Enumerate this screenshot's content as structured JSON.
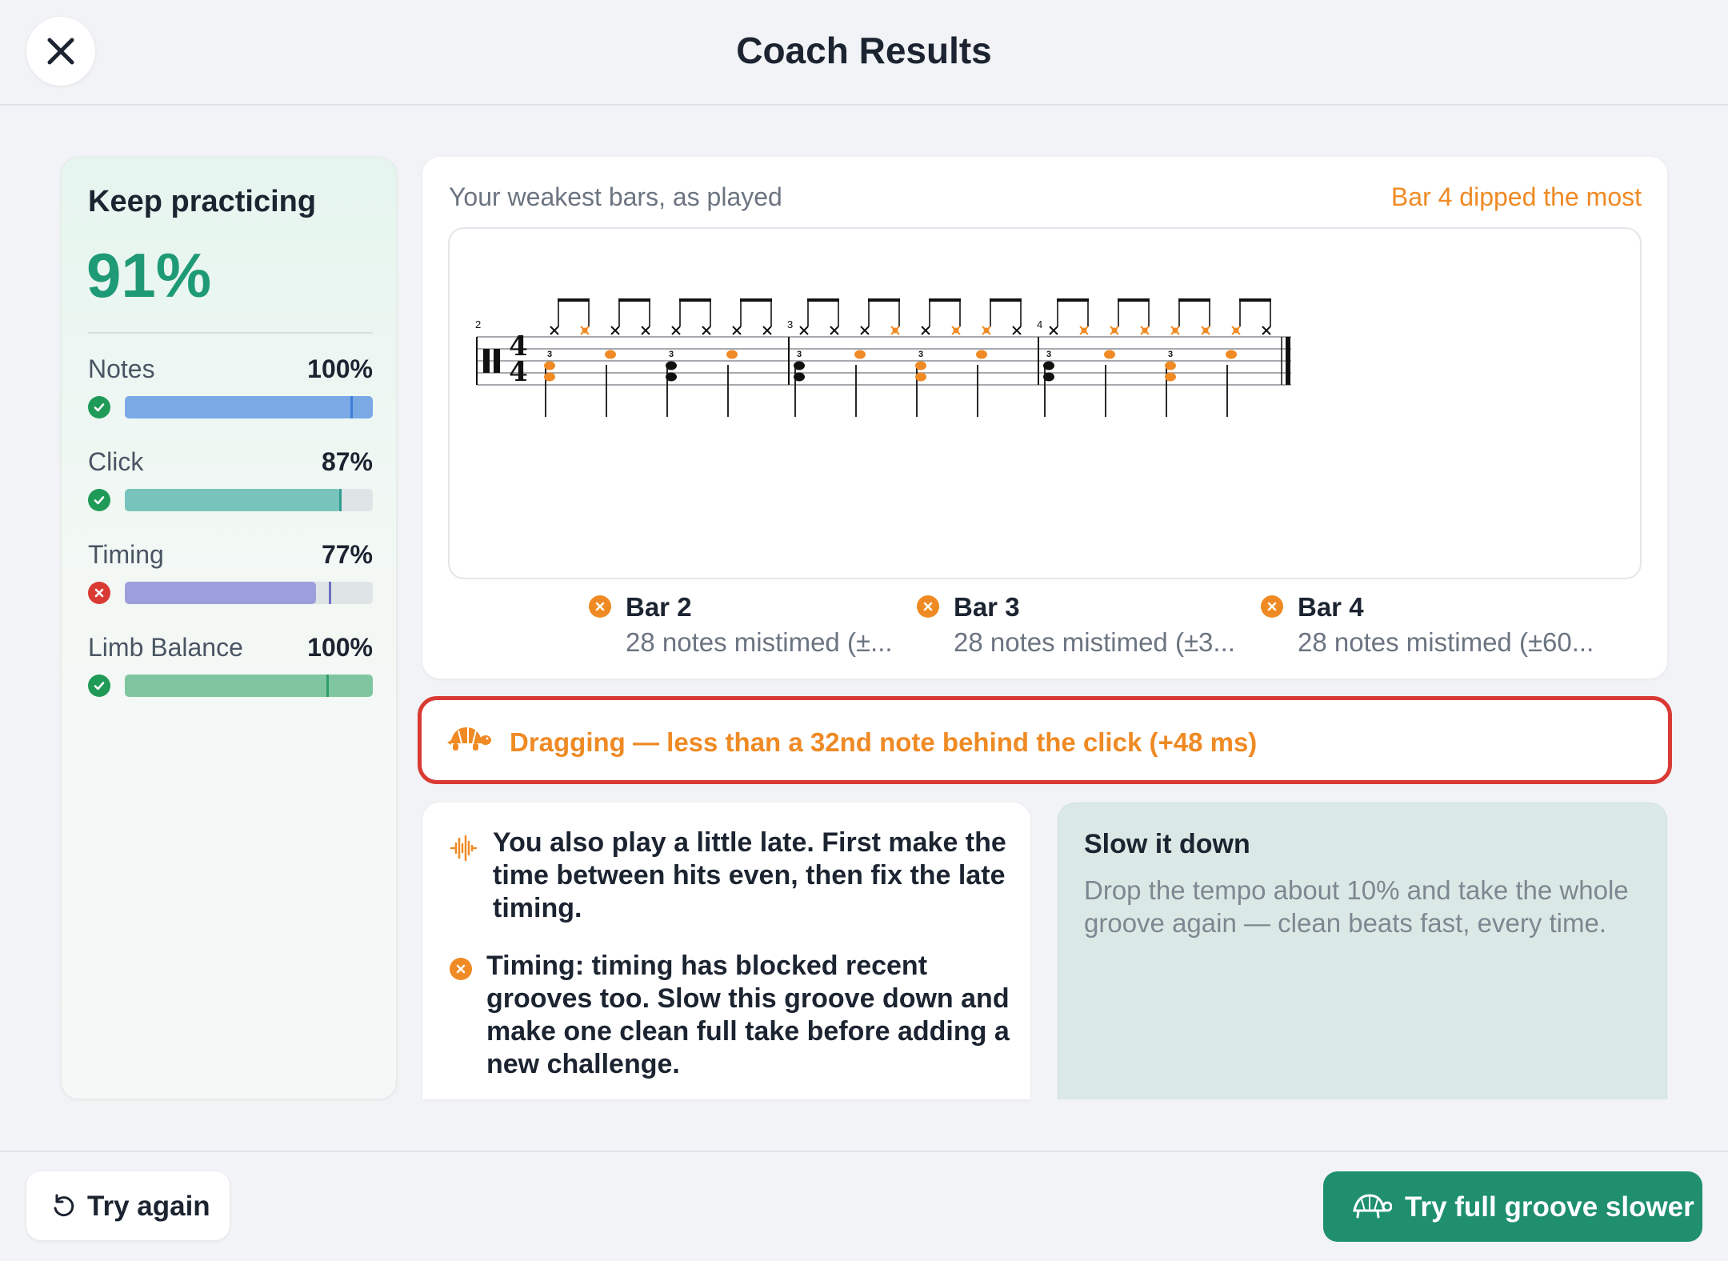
{
  "header": {
    "title": "Coach Results",
    "close_icon": "close-icon"
  },
  "summary": {
    "heading": "Keep practicing",
    "score": "91%",
    "metrics": [
      {
        "label": "Notes",
        "value": "100%",
        "status": "pass",
        "fill": 1.0,
        "target": 0.915,
        "color": "#7aa9e6",
        "marker_color": "#3d7fd6"
      },
      {
        "label": "Click",
        "value": "87%",
        "status": "pass",
        "fill": 0.87,
        "target": 0.87,
        "color": "#78c4bd",
        "marker_color": "#2f9c8f"
      },
      {
        "label": "Timing",
        "value": "77%",
        "status": "fail",
        "fill": 0.77,
        "target": 0.83,
        "color": "#9d9fdc",
        "marker_color": "#6c6fc2"
      },
      {
        "label": "Limb Balance",
        "value": "100%",
        "status": "pass",
        "fill": 1.0,
        "target": 0.82,
        "color": "#7fc6a0",
        "marker_color": "#2f9c6b"
      }
    ]
  },
  "notation": {
    "caption": "Your weakest bars, as played",
    "callout": "Bar 4 dipped the most",
    "bar_numbers": [
      "2",
      "3",
      "4"
    ],
    "tuplet_label": "3",
    "bars": [
      {
        "name": "Bar 2",
        "detail": "28 notes mistimed (±..."
      },
      {
        "name": "Bar 3",
        "detail": "28 notes mistimed (±3..."
      },
      {
        "name": "Bar 4",
        "detail": "28 notes mistimed (±60..."
      }
    ]
  },
  "alert": {
    "text": "Dragging — less than a 32nd note behind the click (+48 ms)",
    "icon": "turtle-icon"
  },
  "feedback": {
    "items": [
      {
        "icon": "waveform-icon",
        "text": "You also play a little late. First make the time between hits even, then fix the late timing."
      },
      {
        "icon": "x-circle-icon",
        "text": "Timing: timing has blocked recent grooves too. Slow this groove down and make one clean full take before adding a new challenge."
      }
    ]
  },
  "tip": {
    "title": "Slow it down",
    "body": "Drop the tempo about 10% and take the whole groove again — clean beats fast, every time."
  },
  "footer": {
    "try_again": "Try again",
    "slower": "Try full groove slower"
  },
  "colors": {
    "accent": "#1f8f6e",
    "warning": "#ef8a24",
    "error": "#d93a34"
  }
}
